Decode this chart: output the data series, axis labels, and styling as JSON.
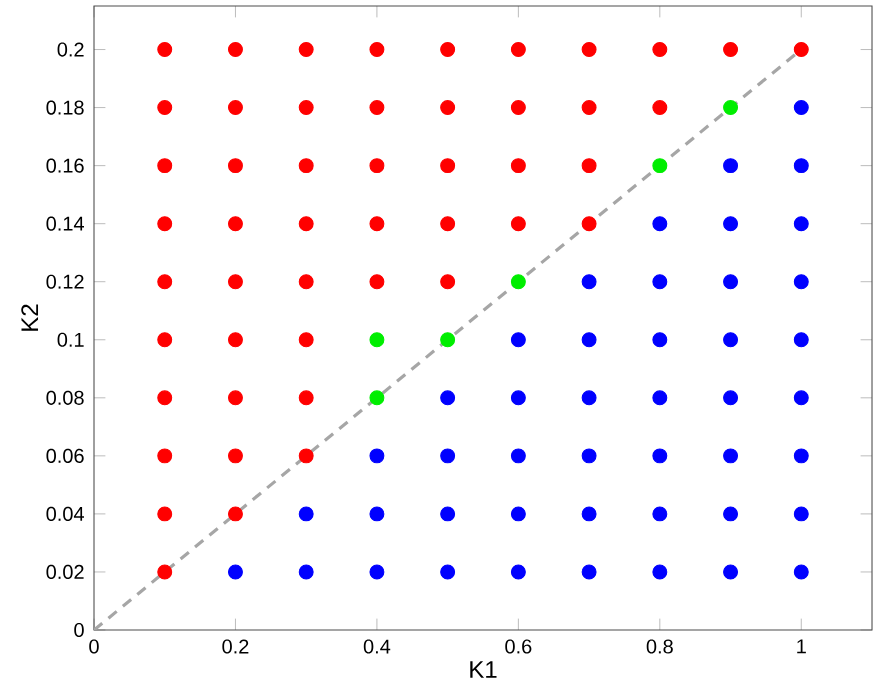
{
  "chart_data": {
    "type": "scatter",
    "xlabel": "K1",
    "ylabel": "K2",
    "xlim": [
      0,
      1.1
    ],
    "ylim": [
      0,
      0.215
    ],
    "xticks": [
      0,
      0.2,
      0.4,
      0.6,
      0.8,
      1
    ],
    "yticks": [
      0,
      0.02,
      0.04,
      0.06,
      0.08,
      0.1,
      0.12,
      0.14,
      0.16,
      0.18,
      0.2
    ],
    "series": [
      {
        "color": "#ff0000",
        "marker": "circle",
        "x": [
          0.1,
          0.1,
          0.1,
          0.1,
          0.1,
          0.1,
          0.1,
          0.1,
          0.1,
          0.1,
          0.2,
          0.2,
          0.2,
          0.2,
          0.2,
          0.2,
          0.2,
          0.2,
          0.2,
          0.3,
          0.3,
          0.3,
          0.3,
          0.3,
          0.3,
          0.3,
          0.3,
          0.4,
          0.4,
          0.4,
          0.4,
          0.4,
          0.5,
          0.5,
          0.5,
          0.5,
          0.5,
          0.6,
          0.6,
          0.6,
          0.6,
          0.7,
          0.7,
          0.7,
          0.7,
          0.8,
          0.8,
          0.9,
          1
        ],
        "values": [
          0.02,
          0.04,
          0.06,
          0.08,
          0.1,
          0.12,
          0.14,
          0.16,
          0.18,
          0.2,
          0.04,
          0.06,
          0.08,
          0.1,
          0.12,
          0.14,
          0.16,
          0.18,
          0.2,
          0.06,
          0.08,
          0.1,
          0.12,
          0.14,
          0.16,
          0.18,
          0.2,
          0.12,
          0.14,
          0.16,
          0.18,
          0.2,
          0.12,
          0.14,
          0.16,
          0.18,
          0.2,
          0.14,
          0.16,
          0.18,
          0.2,
          0.14,
          0.16,
          0.18,
          0.2,
          0.18,
          0.2,
          0.2,
          0.2
        ]
      },
      {
        "color": "#00ee00",
        "marker": "circle",
        "x": [
          0.4,
          0.4,
          0.5,
          0.6,
          0.8,
          0.9
        ],
        "values": [
          0.08,
          0.1,
          0.1,
          0.12,
          0.16,
          0.18
        ]
      },
      {
        "color": "#0000ff",
        "marker": "circle",
        "x": [
          0.2,
          0.3,
          0.3,
          0.4,
          0.4,
          0.4,
          0.5,
          0.5,
          0.5,
          0.5,
          0.6,
          0.6,
          0.6,
          0.6,
          0.6,
          0.7,
          0.7,
          0.7,
          0.7,
          0.7,
          0.7,
          0.8,
          0.8,
          0.8,
          0.8,
          0.8,
          0.8,
          0.8,
          0.9,
          0.9,
          0.9,
          0.9,
          0.9,
          0.9,
          0.9,
          0.9,
          1,
          1,
          1,
          1,
          1,
          1,
          1,
          1,
          1
        ],
        "values": [
          0.02,
          0.02,
          0.04,
          0.02,
          0.04,
          0.06,
          0.02,
          0.04,
          0.06,
          0.08,
          0.02,
          0.04,
          0.06,
          0.08,
          0.1,
          0.02,
          0.04,
          0.06,
          0.08,
          0.1,
          0.12,
          0.02,
          0.04,
          0.06,
          0.08,
          0.1,
          0.12,
          0.14,
          0.02,
          0.04,
          0.06,
          0.08,
          0.1,
          0.12,
          0.14,
          0.16,
          0.02,
          0.04,
          0.06,
          0.08,
          0.1,
          0.12,
          0.14,
          0.16,
          0.18
        ]
      },
      {
        "type": "line",
        "color": "#a6a6a6",
        "line_style": "dashed",
        "marker": "none",
        "x": [
          0,
          1
        ],
        "values": [
          0,
          0.2
        ]
      }
    ]
  }
}
